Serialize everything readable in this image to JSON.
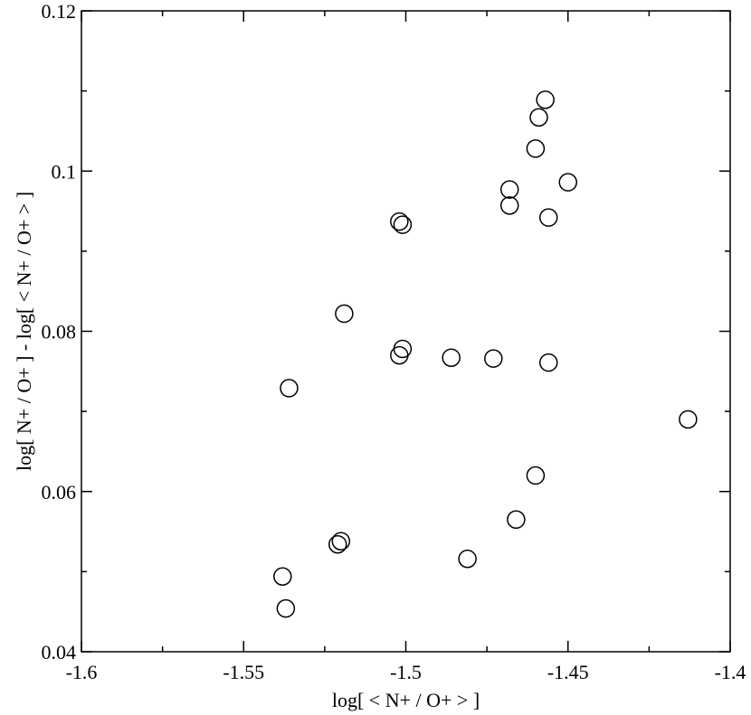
{
  "chart_data": {
    "type": "scatter",
    "title": "",
    "xlabel": "log[ < N+ / O+ > ]",
    "ylabel": "log[ N+ / O+ ] - log[ < N+ / O+ > ]",
    "xlim": [
      -1.6,
      -1.4
    ],
    "ylim": [
      0.04,
      0.12
    ],
    "x_ticks": [
      -1.6,
      -1.55,
      -1.5,
      -1.45,
      -1.4
    ],
    "x_tick_labels": [
      "-1.6",
      "-1.55",
      "-1.5",
      "-1.45",
      "-1.4"
    ],
    "y_ticks": [
      0.04,
      0.06,
      0.08,
      0.1,
      0.12
    ],
    "y_tick_labels": [
      "0.04",
      "0.06",
      "0.08",
      "0.1",
      "0.12"
    ],
    "grid": false,
    "marker": "open-circle",
    "marker_color": "#000000",
    "series": [
      {
        "points": [
          {
            "x": -1.457,
            "y": 0.1089
          },
          {
            "x": -1.459,
            "y": 0.1067
          },
          {
            "x": -1.46,
            "y": 0.1028
          },
          {
            "x": -1.45,
            "y": 0.0986
          },
          {
            "x": -1.468,
            "y": 0.0977
          },
          {
            "x": -1.468,
            "y": 0.0957
          },
          {
            "x": -1.456,
            "y": 0.0942
          },
          {
            "x": -1.502,
            "y": 0.0937
          },
          {
            "x": -1.501,
            "y": 0.0933
          },
          {
            "x": -1.519,
            "y": 0.0822
          },
          {
            "x": -1.501,
            "y": 0.0778
          },
          {
            "x": -1.502,
            "y": 0.077
          },
          {
            "x": -1.486,
            "y": 0.0767
          },
          {
            "x": -1.473,
            "y": 0.0766
          },
          {
            "x": -1.456,
            "y": 0.0761
          },
          {
            "x": -1.536,
            "y": 0.0729
          },
          {
            "x": -1.413,
            "y": 0.069
          },
          {
            "x": -1.46,
            "y": 0.062
          },
          {
            "x": -1.466,
            "y": 0.0565
          },
          {
            "x": -1.52,
            "y": 0.0538
          },
          {
            "x": -1.521,
            "y": 0.0534
          },
          {
            "x": -1.481,
            "y": 0.0516
          },
          {
            "x": -1.538,
            "y": 0.0494
          },
          {
            "x": -1.537,
            "y": 0.0454
          }
        ]
      }
    ]
  }
}
